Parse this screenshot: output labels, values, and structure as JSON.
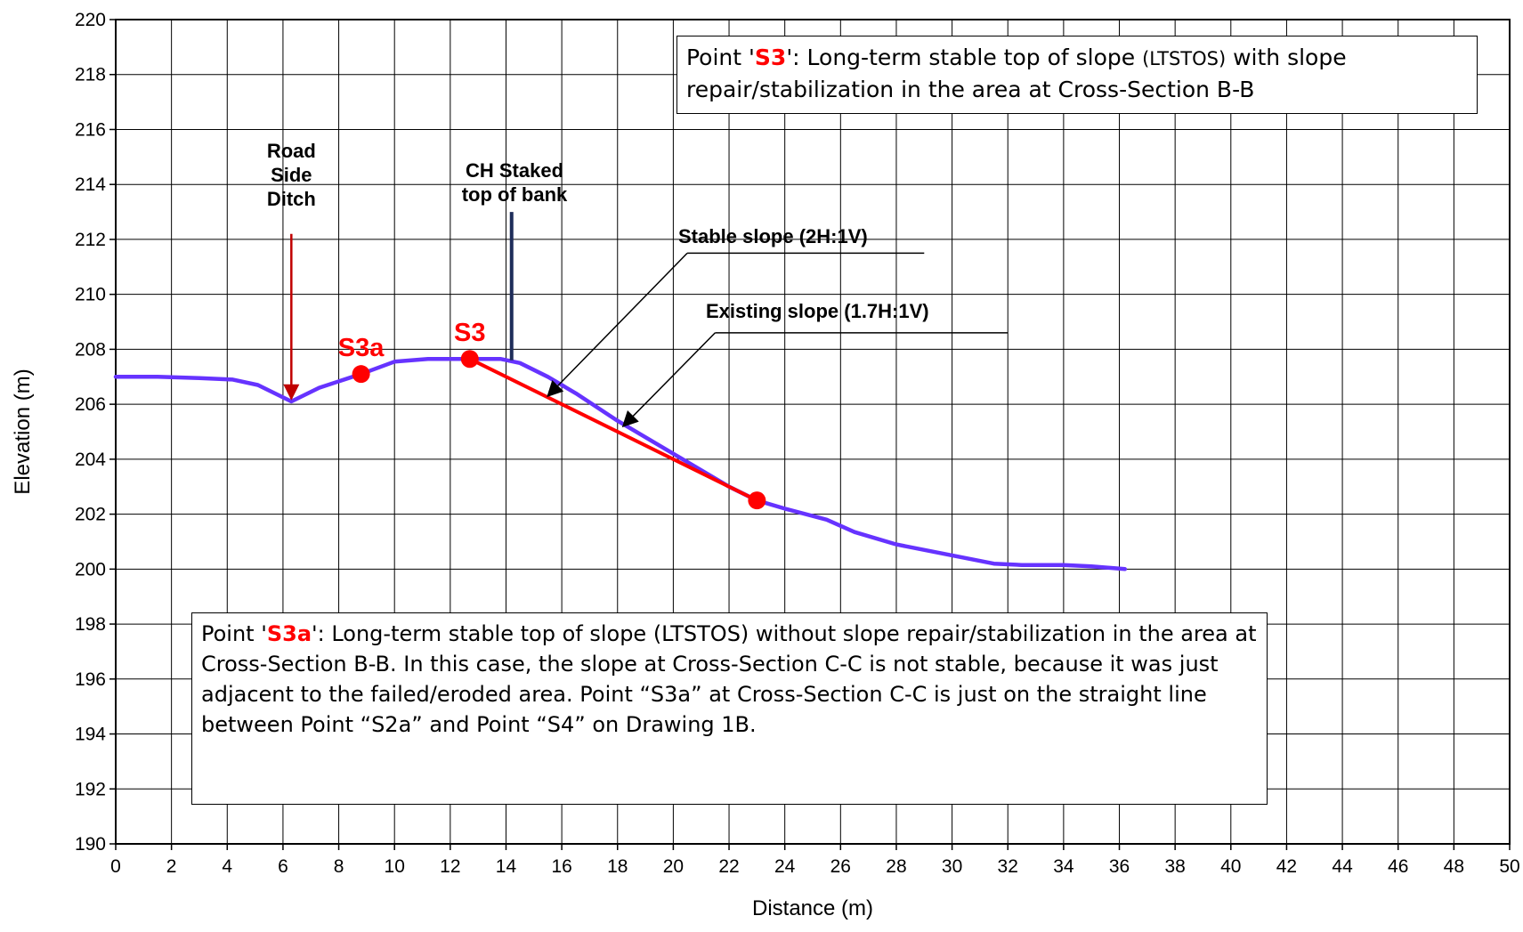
{
  "chart_data": {
    "type": "line",
    "xlabel": "Distance (m)",
    "ylabel": "Elevation (m)",
    "xlim": [
      0,
      50
    ],
    "ylim": [
      190,
      220
    ],
    "x_ticks": [
      0,
      2,
      4,
      6,
      8,
      10,
      12,
      14,
      16,
      18,
      20,
      22,
      24,
      26,
      28,
      30,
      32,
      34,
      36,
      38,
      40,
      42,
      44,
      46,
      48,
      50
    ],
    "y_ticks": [
      190,
      192,
      194,
      196,
      198,
      200,
      202,
      204,
      206,
      208,
      210,
      212,
      214,
      216,
      218,
      220
    ],
    "grid": true,
    "colors": {
      "existing": "#6633ff",
      "stable": "#ff0000",
      "ditch_arrow": "#c00000",
      "stake": "#1f2d5a",
      "point": "#ff0000"
    },
    "series": [
      {
        "x": [
          0,
          1.5,
          3,
          4.2,
          5.1,
          6.3,
          7.3,
          8.8,
          10,
          11.2,
          12.7,
          13.8,
          14.5,
          15.5,
          16.5,
          18,
          20,
          22,
          23,
          24,
          25.5,
          26.5,
          28,
          30,
          31.5,
          32.5,
          34,
          35,
          36.2
        ],
        "y": [
          207,
          207,
          206.95,
          206.9,
          206.7,
          206.1,
          206.6,
          207.1,
          207.55,
          207.65,
          207.65,
          207.65,
          207.5,
          207,
          206.4,
          205.4,
          204.2,
          203,
          202.5,
          202.2,
          201.8,
          201.35,
          200.9,
          200.5,
          200.2,
          200.15,
          200.15,
          200.1,
          200
        ]
      },
      {
        "x": [
          12.7,
          23
        ],
        "y": [
          207.65,
          202.5
        ]
      }
    ],
    "points": [
      {
        "name": "S3a",
        "x": 8.8,
        "y": 207.1
      },
      {
        "name": "S3",
        "x": 12.7,
        "y": 207.65
      },
      {
        "name": "",
        "x": 23,
        "y": 202.5
      }
    ],
    "annotations": {
      "ditch": {
        "lines": [
          "Road",
          "Side",
          "Ditch"
        ],
        "arrow_from": [
          6.3,
          212.2
        ],
        "arrow_to": [
          6.3,
          206.2
        ]
      },
      "stake": {
        "lines": [
          "CH Staked",
          "top of bank"
        ],
        "x": 14.2,
        "y_from": 213,
        "y_to": 207.6
      },
      "stable_slope": {
        "text": "Stable slope (2H:1V)",
        "leader_from": [
          29,
          211.5
        ],
        "elbow": [
          20.5,
          211.5
        ],
        "arrow_to": [
          15.5,
          206.3
        ]
      },
      "existing_slope": {
        "text": "Existing slope (1.7H:1V)",
        "leader_from": [
          32,
          208.6
        ],
        "elbow": [
          21.5,
          208.6
        ],
        "arrow_to": [
          18.2,
          205.2
        ]
      }
    }
  },
  "notes": {
    "s3": {
      "prefix": "Point '",
      "point": "S3",
      "middle": "': Long-term stable top of slope ",
      "abbr": "(LTSTOS)",
      "rest": " with slope repair/stabilization in the area at Cross-Section B-B"
    },
    "s3a": {
      "prefix": "Point '",
      "point": "S3a",
      "rest": "': Long-term stable top of slope (LTSTOS) without slope repair/stabilization in the area at Cross-Section B-B. In this case, the slope at Cross-Section C-C is not stable, because it was just adjacent to the failed/eroded area.  Point “S3a” at Cross-Section C-C is just on the straight line between Point “S2a” and Point “S4” on Drawing 1B."
    }
  }
}
